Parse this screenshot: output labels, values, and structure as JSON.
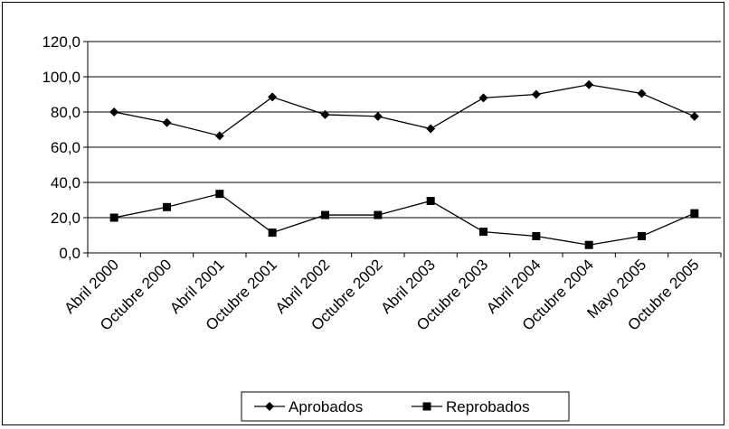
{
  "chart_data": {
    "type": "line",
    "categories": [
      "Abril 2000",
      "Octubre 2000",
      "Abril 2001",
      "Octubre 2001",
      "Abril 2002",
      "Octubre 2002",
      "Abril 2003",
      "Octubre 2003",
      "Abril 2004",
      "Octubre 2004",
      "Mayo 2005",
      "Octubre 2005"
    ],
    "series": [
      {
        "name": "Aprobados",
        "marker": "diamond",
        "color": "#000000",
        "values": [
          80.0,
          74.0,
          66.5,
          88.5,
          78.5,
          77.5,
          70.5,
          88.0,
          90.0,
          95.5,
          90.5,
          77.5
        ]
      },
      {
        "name": "Reprobados",
        "marker": "square",
        "color": "#000000",
        "values": [
          20.0,
          26.0,
          33.5,
          11.5,
          21.5,
          21.5,
          29.5,
          12.0,
          9.5,
          4.5,
          9.5,
          22.5
        ]
      }
    ],
    "y_ticks": [
      "0,0",
      "20,0",
      "40,0",
      "60,0",
      "80,0",
      "100,0",
      "120,0"
    ],
    "ylim": [
      0,
      120
    ],
    "y_step": 20,
    "grid": "horizontal",
    "legend_position": "bottom",
    "title": "",
    "xlabel": "",
    "ylabel": ""
  }
}
